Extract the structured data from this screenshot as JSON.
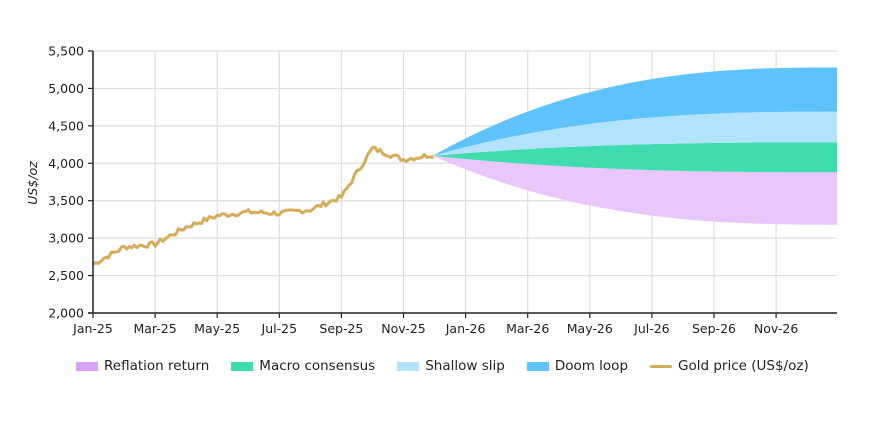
{
  "chart_data": {
    "type": "area",
    "title": "",
    "xlabel": "",
    "ylabel": "US$/oz",
    "ylim": [
      2000,
      5500
    ],
    "yticks": [
      "2,000",
      "2,500",
      "3,000",
      "3,500",
      "4,000",
      "4,500",
      "5,000",
      "5,500"
    ],
    "ytick_values": [
      2000,
      2500,
      3000,
      3500,
      4000,
      4500,
      5000,
      5500
    ],
    "xticks": [
      "Jan-25",
      "Mar-25",
      "May-25",
      "Jul-25",
      "Sep-25",
      "Nov-25",
      "Jan-26",
      "Mar-26",
      "May-26",
      "Jul-26",
      "Sep-26",
      "Nov-26"
    ],
    "grid": true,
    "legend_position": "bottom",
    "gold_price": {
      "name": "Gold price (US$/oz)",
      "color": "#d4ad5a",
      "x": [
        "Jan-25",
        "Feb-25",
        "Mar-25",
        "Apr-25",
        "May-25",
        "Jun-25",
        "Jul-25",
        "Aug-25",
        "Sep-25",
        "Oct-25",
        "Nov-25",
        "Dec-25"
      ],
      "values": [
        2650,
        2880,
        2920,
        3150,
        3300,
        3350,
        3330,
        3380,
        3550,
        4200,
        4050,
        4120
      ]
    },
    "scenarios_start": {
      "x": "mid-Dec-25",
      "value": 4100
    },
    "scenarios_end": {
      "x": "Dec-26"
    },
    "series": [
      {
        "name": "Reflation return",
        "color": "#e9c6fb",
        "legend_color": "#d9a1f5",
        "lower_end": 3180,
        "upper_end": 3880
      },
      {
        "name": "Macro consensus",
        "color": "#3fdcad",
        "legend_color": "#3fdcad",
        "lower_end": 3880,
        "upper_end": 4280
      },
      {
        "name": "Shallow slip",
        "color": "#b3e3fc",
        "legend_color": "#b3e3fc",
        "lower_end": 4280,
        "upper_end": 4690
      },
      {
        "name": "Doom loop",
        "color": "#5fc3fa",
        "legend_color": "#5fc3fa",
        "lower_end": 4690,
        "upper_end": 5280
      }
    ]
  },
  "legend": [
    {
      "label": "Reflation return",
      "color": "#d9a1f5",
      "kind": "box"
    },
    {
      "label": "Macro consensus",
      "color": "#3fdcad",
      "kind": "box"
    },
    {
      "label": "Shallow slip",
      "color": "#b3e3fc",
      "kind": "box"
    },
    {
      "label": "Doom loop",
      "color": "#5fc3fa",
      "kind": "box"
    },
    {
      "label": "Gold price (US$/oz)",
      "color": "#d4ad5a",
      "kind": "line"
    }
  ]
}
